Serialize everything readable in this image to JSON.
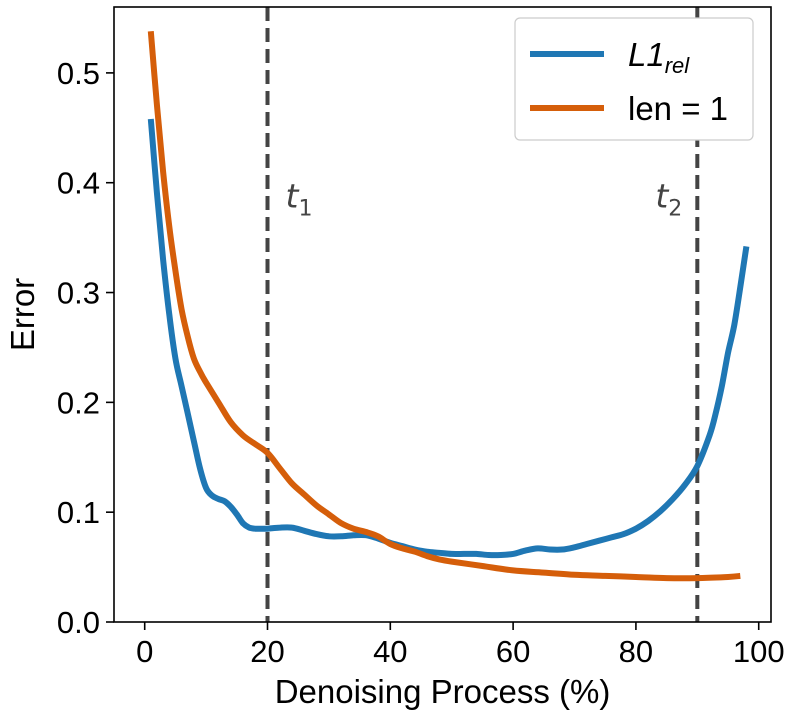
{
  "chart_data": {
    "type": "line",
    "title": "",
    "xlabel": "Denoising Process (%)",
    "ylabel": "Error",
    "xlim": [
      -5,
      102
    ],
    "ylim": [
      0,
      0.56
    ],
    "xticks": [
      0,
      20,
      40,
      60,
      80,
      100
    ],
    "yticks": [
      0.0,
      0.1,
      0.2,
      0.3,
      0.4,
      0.5
    ],
    "xtick_labels": [
      "0",
      "20",
      "40",
      "60",
      "80",
      "100"
    ],
    "ytick_labels": [
      "0.0",
      "0.1",
      "0.2",
      "0.3",
      "0.4",
      "0.5"
    ],
    "legend_position": "top-right",
    "colors": {
      "l1_rel": "#1f77b4",
      "len1": "#d55e0a",
      "vline": "#444444"
    },
    "series": [
      {
        "name": "L1rel",
        "name_main": "L1",
        "name_sub": "rel",
        "color": "#1f77b4",
        "x": [
          1,
          2,
          3,
          4,
          5,
          6,
          7,
          8,
          9,
          10,
          11,
          12,
          13,
          14,
          15,
          16,
          17,
          18,
          19,
          20,
          22,
          24,
          26,
          28,
          30,
          32,
          34,
          36,
          38,
          40,
          42,
          44,
          46,
          48,
          50,
          52,
          54,
          56,
          58,
          60,
          62,
          64,
          66,
          68,
          70,
          72,
          74,
          76,
          78,
          80,
          82,
          84,
          86,
          88,
          90,
          92,
          93,
          94,
          95,
          96,
          97,
          98
        ],
        "y": [
          0.458,
          0.39,
          0.33,
          0.28,
          0.24,
          0.215,
          0.19,
          0.165,
          0.14,
          0.122,
          0.115,
          0.112,
          0.11,
          0.105,
          0.098,
          0.09,
          0.086,
          0.085,
          0.085,
          0.085,
          0.086,
          0.086,
          0.083,
          0.08,
          0.078,
          0.078,
          0.079,
          0.079,
          0.076,
          0.072,
          0.069,
          0.066,
          0.064,
          0.063,
          0.062,
          0.062,
          0.062,
          0.061,
          0.061,
          0.062,
          0.065,
          0.067,
          0.066,
          0.066,
          0.068,
          0.071,
          0.074,
          0.077,
          0.08,
          0.085,
          0.092,
          0.101,
          0.112,
          0.125,
          0.142,
          0.17,
          0.19,
          0.215,
          0.245,
          0.27,
          0.305,
          0.342
        ]
      },
      {
        "name": "len = 1",
        "color": "#d55e0a",
        "x": [
          1,
          2,
          3,
          4,
          5,
          6,
          7,
          8,
          9,
          10,
          12,
          14,
          16,
          18,
          20,
          22,
          24,
          26,
          28,
          30,
          32,
          34,
          36,
          38,
          40,
          42,
          44,
          46,
          48,
          50,
          55,
          60,
          65,
          70,
          75,
          80,
          85,
          90,
          95,
          97
        ],
        "y": [
          0.538,
          0.47,
          0.41,
          0.36,
          0.32,
          0.285,
          0.26,
          0.24,
          0.228,
          0.218,
          0.2,
          0.182,
          0.17,
          0.162,
          0.154,
          0.14,
          0.126,
          0.116,
          0.106,
          0.098,
          0.09,
          0.085,
          0.082,
          0.078,
          0.071,
          0.067,
          0.064,
          0.06,
          0.057,
          0.055,
          0.051,
          0.047,
          0.045,
          0.043,
          0.042,
          0.041,
          0.04,
          0.04,
          0.041,
          0.042
        ]
      }
    ],
    "vlines": [
      {
        "x": 20,
        "label_main": "t",
        "label_sub": "1",
        "label_y": 0.39
      },
      {
        "x": 90,
        "label_main": "t",
        "label_sub": "2",
        "label_y": 0.39
      }
    ]
  }
}
